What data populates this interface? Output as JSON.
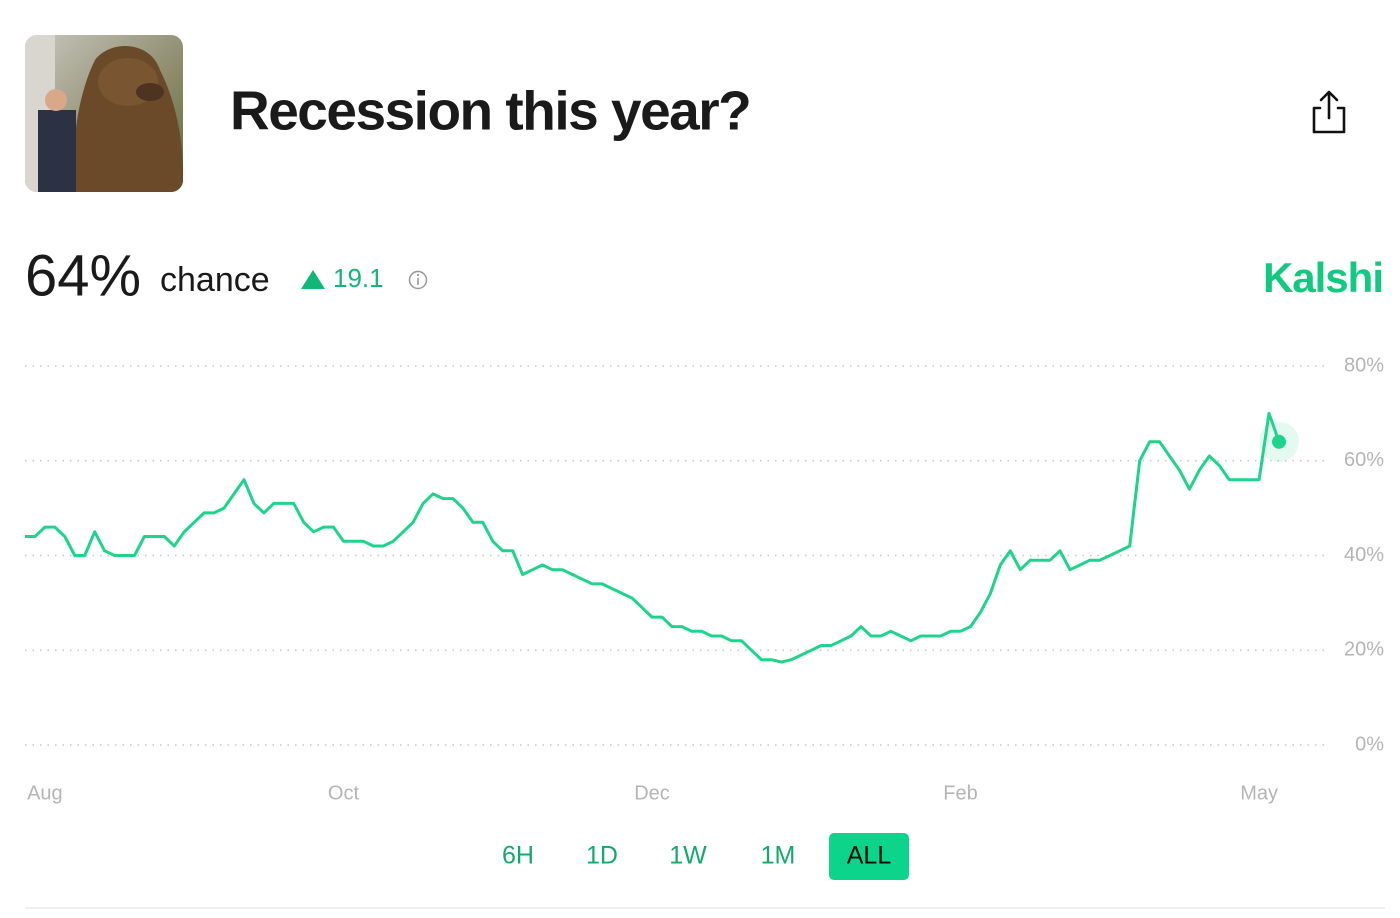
{
  "header": {
    "title": "Recession this year?",
    "chance": "64%",
    "chance_word": "chance",
    "change": "19.1",
    "source": "Kalshi"
  },
  "range_buttons": {
    "labels": [
      "6H",
      "1D",
      "1W",
      "1M",
      "ALL"
    ],
    "active": "ALL"
  },
  "chart_data": {
    "type": "line",
    "series": [
      {
        "name": "Recession this year?",
        "color": "#1ed48a",
        "values": [
          44,
          44,
          46,
          46,
          44,
          40,
          40,
          45,
          41,
          40,
          40,
          40,
          44,
          44,
          44,
          42,
          45,
          47,
          49,
          49,
          50,
          53,
          56,
          51,
          49,
          51,
          51,
          51,
          47,
          45,
          46,
          46,
          43,
          43,
          43,
          42,
          42,
          43,
          45,
          47,
          51,
          53,
          52,
          52,
          50,
          47,
          47,
          43,
          41,
          41,
          36,
          37,
          38,
          37,
          37,
          36,
          35,
          34,
          34,
          33,
          32,
          31,
          29,
          27,
          27,
          25,
          25,
          24,
          24,
          23,
          23,
          22,
          22,
          20,
          18,
          18,
          17.5,
          18,
          19,
          20,
          21,
          21,
          22,
          23,
          25,
          23,
          23,
          24,
          23,
          22,
          23,
          23,
          23,
          24,
          24,
          25,
          28,
          32,
          38,
          41,
          37,
          39,
          39,
          39,
          41,
          37,
          38,
          39,
          39,
          40,
          41,
          42,
          60,
          64,
          64,
          61,
          58,
          54,
          58,
          61,
          59,
          56,
          56,
          56,
          56,
          70,
          64
        ]
      }
    ],
    "xlim": [
      0,
      126
    ],
    "xticks": [
      {
        "value": 2,
        "label": "Aug"
      },
      {
        "value": 32,
        "label": "Oct"
      },
      {
        "value": 63,
        "label": "Dec"
      },
      {
        "value": 94,
        "label": "Feb"
      },
      {
        "value": 124,
        "label": "May"
      }
    ],
    "ylim": [
      0,
      80
    ],
    "yticks": [
      {
        "value": 0,
        "label": "0%"
      },
      {
        "value": 20,
        "label": "20%"
      },
      {
        "value": 40,
        "label": "40%"
      },
      {
        "value": 60,
        "label": "60%"
      },
      {
        "value": 80,
        "label": "80%"
      }
    ],
    "grid": true
  }
}
